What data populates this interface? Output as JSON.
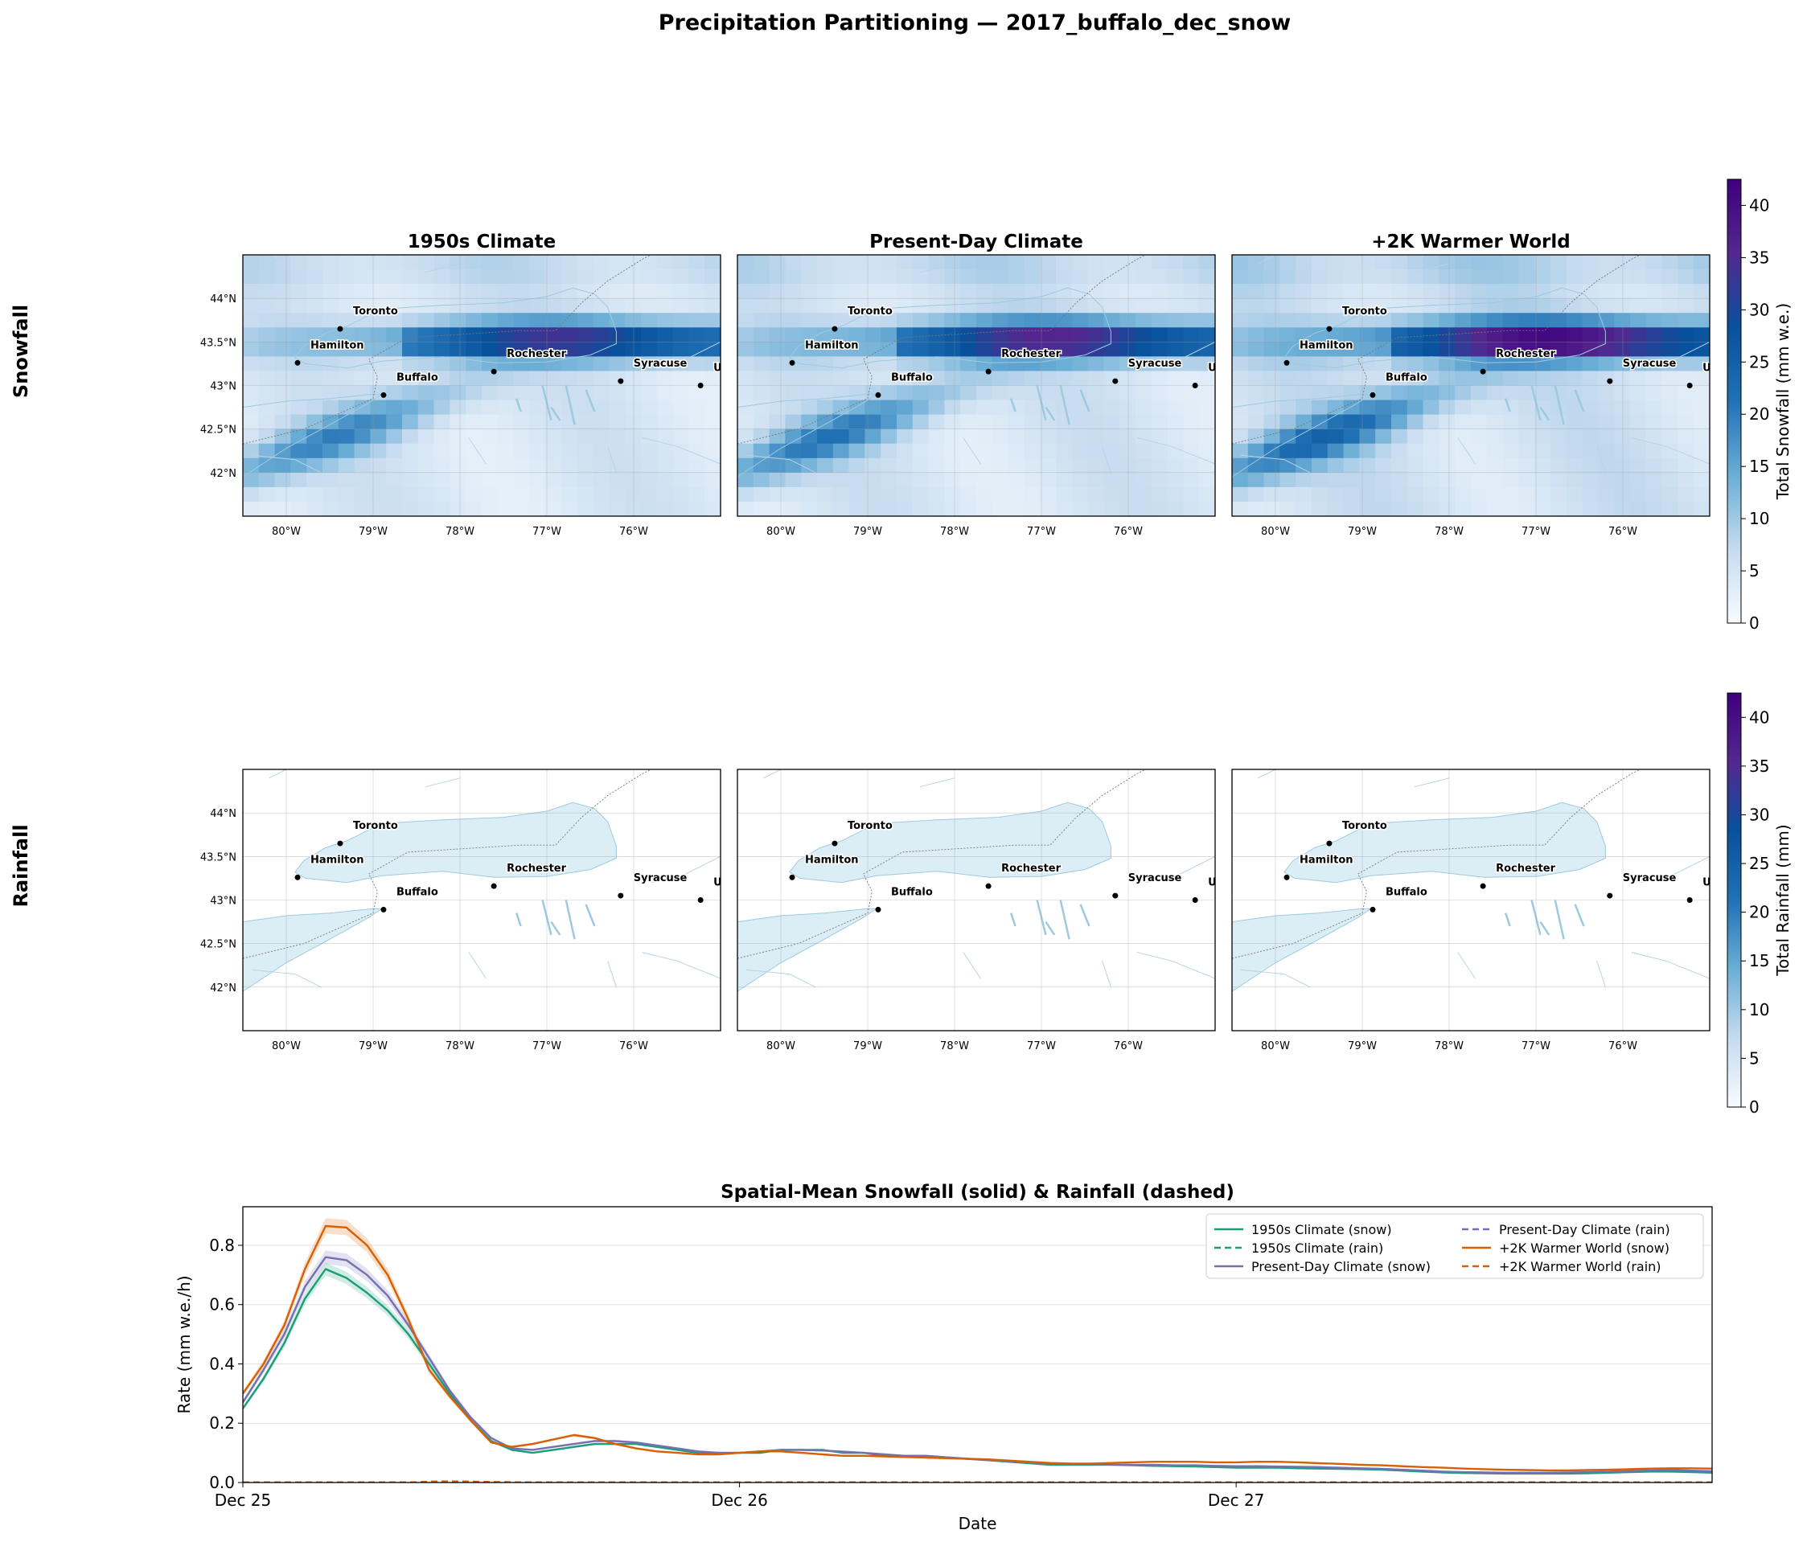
{
  "figure": {
    "title": "Precipitation Partitioning — 2017_buffalo_dec_snow"
  },
  "rows": [
    {
      "label": "Snowfall",
      "field": "snow",
      "colorbar_label": "Total Snowfall (mm w.e.)"
    },
    {
      "label": "Rainfall",
      "field": "rain",
      "colorbar_label": "Total Rainfall (mm)"
    }
  ],
  "scenarios": [
    {
      "name": "1950s Climate",
      "color": "#1b9e77",
      "snow_scale": 0.88
    },
    {
      "name": "Present-Day Climate",
      "color": "#7570b3",
      "snow_scale": 0.95
    },
    {
      "name": "+2K Warmer World",
      "color": "#d95f02",
      "snow_scale": 1.08
    }
  ],
  "map": {
    "lon_range": [
      -80.5,
      -75.0
    ],
    "lat_range": [
      41.5,
      44.5
    ],
    "lon_ticks": [
      -80,
      -79,
      -78,
      -77,
      -76
    ],
    "lon_tick_labels": [
      "80°W",
      "79°W",
      "78°W",
      "77°W",
      "76°W"
    ],
    "lat_ticks": [
      42,
      42.5,
      43,
      43.5,
      44
    ],
    "lat_tick_labels": [
      "42°N",
      "42.5°N",
      "43°N",
      "43.5°N",
      "44°N"
    ],
    "cities": [
      {
        "name": "Toronto",
        "lon": -79.38,
        "lat": 43.65
      },
      {
        "name": "Hamilton",
        "lon": -79.87,
        "lat": 43.26
      },
      {
        "name": "Buffalo",
        "lon": -78.88,
        "lat": 42.89
      },
      {
        "name": "Rochester",
        "lon": -77.61,
        "lat": 43.16
      },
      {
        "name": "Syracuse",
        "lon": -76.15,
        "lat": 43.05
      },
      {
        "name": "Utica",
        "lon": -75.23,
        "lat": 43.0
      }
    ]
  },
  "colorbar": {
    "min": 0,
    "max": 42.5,
    "ticks": [
      0,
      5,
      10,
      15,
      20,
      25,
      30,
      35,
      40
    ],
    "colormap": "Blues→Purples",
    "colors": [
      "#f7fbff",
      "#c6dbef",
      "#6baed6",
      "#2171b5",
      "#08519c",
      "#54278f",
      "#3f007d"
    ]
  },
  "chart_data": {
    "type": "line",
    "title": "Spatial-Mean Snowfall (solid) & Rainfall (dashed)",
    "xlabel": "Date",
    "ylabel": "Rate (mm w.e./h)",
    "xlim": [
      0,
      71
    ],
    "ylim": [
      0,
      0.93
    ],
    "x_ticks": [
      0,
      24,
      48
    ],
    "x_tick_labels": [
      "Dec 25",
      "Dec 26",
      "Dec 27"
    ],
    "y_ticks": [
      0.0,
      0.2,
      0.4,
      0.6,
      0.8
    ],
    "y_tick_labels": [
      "0.0",
      "0.2",
      "0.4",
      "0.6",
      "0.8"
    ],
    "grid": "y",
    "legend_position": "upper right",
    "x": [
      0,
      1,
      2,
      3,
      4,
      5,
      6,
      7,
      8,
      9,
      10,
      11,
      12,
      13,
      14,
      15,
      16,
      17,
      18,
      19,
      20,
      21,
      22,
      23,
      24,
      25,
      26,
      27,
      28,
      29,
      30,
      31,
      32,
      33,
      34,
      35,
      36,
      37,
      38,
      39,
      40,
      41,
      42,
      43,
      44,
      45,
      46,
      47,
      48,
      49,
      50,
      51,
      52,
      53,
      54,
      55,
      56,
      57,
      58,
      59,
      60,
      61,
      62,
      63,
      64,
      65,
      66,
      67,
      68,
      69,
      70,
      71
    ],
    "series": [
      {
        "name": "1950s Climate (snow)",
        "color": "#1b9e77",
        "dash": false,
        "band": 0.03,
        "values": [
          0.25,
          0.35,
          0.47,
          0.62,
          0.72,
          0.69,
          0.64,
          0.58,
          0.5,
          0.4,
          0.3,
          0.21,
          0.14,
          0.11,
          0.1,
          0.11,
          0.12,
          0.13,
          0.13,
          0.13,
          0.12,
          0.11,
          0.1,
          0.1,
          0.1,
          0.1,
          0.11,
          0.11,
          0.11,
          0.1,
          0.1,
          0.09,
          0.09,
          0.09,
          0.085,
          0.08,
          0.075,
          0.07,
          0.065,
          0.06,
          0.06,
          0.06,
          0.06,
          0.058,
          0.056,
          0.055,
          0.054,
          0.052,
          0.05,
          0.05,
          0.05,
          0.048,
          0.047,
          0.046,
          0.045,
          0.043,
          0.04,
          0.037,
          0.034,
          0.032,
          0.031,
          0.03,
          0.03,
          0.03,
          0.03,
          0.031,
          0.033,
          0.035,
          0.037,
          0.037,
          0.035,
          0.033
        ]
      },
      {
        "name": "1950s Climate (rain)",
        "color": "#1b9e77",
        "dash": true,
        "band": 0,
        "values": [
          0,
          0,
          0,
          0,
          0,
          0,
          0,
          0,
          0,
          0.001,
          0.001,
          0.001,
          0,
          0,
          0,
          0,
          0,
          0,
          0,
          0,
          0,
          0,
          0,
          0,
          0,
          0,
          0,
          0,
          0,
          0,
          0,
          0,
          0,
          0,
          0,
          0,
          0,
          0,
          0,
          0,
          0,
          0,
          0,
          0,
          0,
          0,
          0,
          0,
          0,
          0,
          0,
          0,
          0,
          0,
          0,
          0,
          0,
          0,
          0,
          0,
          0,
          0,
          0,
          0,
          0,
          0,
          0,
          0,
          0,
          0,
          0,
          0
        ]
      },
      {
        "name": "Present-Day Climate (snow)",
        "color": "#7570b3",
        "dash": false,
        "band": 0.03,
        "values": [
          0.27,
          0.38,
          0.5,
          0.66,
          0.76,
          0.75,
          0.7,
          0.63,
          0.53,
          0.42,
          0.31,
          0.22,
          0.15,
          0.115,
          0.11,
          0.12,
          0.13,
          0.14,
          0.14,
          0.135,
          0.125,
          0.115,
          0.105,
          0.1,
          0.1,
          0.105,
          0.11,
          0.11,
          0.108,
          0.104,
          0.1,
          0.095,
          0.09,
          0.09,
          0.085,
          0.08,
          0.076,
          0.072,
          0.068,
          0.064,
          0.062,
          0.062,
          0.06,
          0.06,
          0.06,
          0.058,
          0.058,
          0.056,
          0.055,
          0.055,
          0.054,
          0.053,
          0.052,
          0.05,
          0.048,
          0.046,
          0.043,
          0.04,
          0.037,
          0.035,
          0.034,
          0.033,
          0.033,
          0.033,
          0.034,
          0.035,
          0.037,
          0.039,
          0.041,
          0.042,
          0.04,
          0.038
        ]
      },
      {
        "name": "Present-Day Climate (rain)",
        "color": "#7570b3",
        "dash": true,
        "band": 0,
        "values": [
          0,
          0,
          0,
          0,
          0,
          0,
          0,
          0,
          0,
          0.002,
          0.002,
          0.002,
          0.001,
          0,
          0,
          0,
          0,
          0,
          0,
          0,
          0,
          0,
          0,
          0,
          0,
          0,
          0,
          0,
          0,
          0,
          0,
          0,
          0,
          0,
          0,
          0,
          0,
          0,
          0,
          0,
          0,
          0,
          0,
          0,
          0,
          0,
          0,
          0,
          0,
          0,
          0,
          0,
          0,
          0,
          0,
          0,
          0,
          0,
          0,
          0,
          0,
          0,
          0,
          0,
          0,
          0,
          0,
          0,
          0,
          0,
          0,
          0
        ]
      },
      {
        "name": "+2K Warmer World (snow)",
        "color": "#d95f02",
        "dash": false,
        "band": 0.03,
        "values": [
          0.3,
          0.4,
          0.53,
          0.72,
          0.865,
          0.86,
          0.8,
          0.7,
          0.55,
          0.38,
          0.29,
          0.21,
          0.135,
          0.12,
          0.13,
          0.145,
          0.16,
          0.15,
          0.13,
          0.115,
          0.105,
          0.1,
          0.095,
          0.095,
          0.1,
          0.105,
          0.105,
          0.1,
          0.095,
          0.09,
          0.09,
          0.088,
          0.086,
          0.084,
          0.082,
          0.08,
          0.078,
          0.074,
          0.07,
          0.066,
          0.064,
          0.064,
          0.066,
          0.068,
          0.07,
          0.07,
          0.07,
          0.068,
          0.068,
          0.07,
          0.07,
          0.068,
          0.065,
          0.063,
          0.06,
          0.058,
          0.055,
          0.052,
          0.05,
          0.047,
          0.045,
          0.043,
          0.042,
          0.041,
          0.041,
          0.042,
          0.043,
          0.045,
          0.047,
          0.048,
          0.048,
          0.047
        ]
      },
      {
        "name": "+2K Warmer World (rain)",
        "color": "#d95f02",
        "dash": true,
        "band": 0,
        "values": [
          0,
          0,
          0,
          0,
          0,
          0,
          0,
          0,
          0,
          0.003,
          0.004,
          0.003,
          0.002,
          0.001,
          0,
          0,
          0,
          0,
          0,
          0,
          0,
          0,
          0,
          0,
          0,
          0,
          0,
          0,
          0,
          0,
          0,
          0,
          0,
          0,
          0,
          0,
          0,
          0,
          0,
          0,
          0,
          0,
          0,
          0,
          0,
          0,
          0,
          0,
          0,
          0,
          0,
          0,
          0,
          0,
          0,
          0,
          0,
          0,
          0,
          0,
          0,
          0,
          0,
          0,
          0,
          0,
          0,
          0,
          0,
          0,
          0,
          0
        ]
      }
    ]
  }
}
